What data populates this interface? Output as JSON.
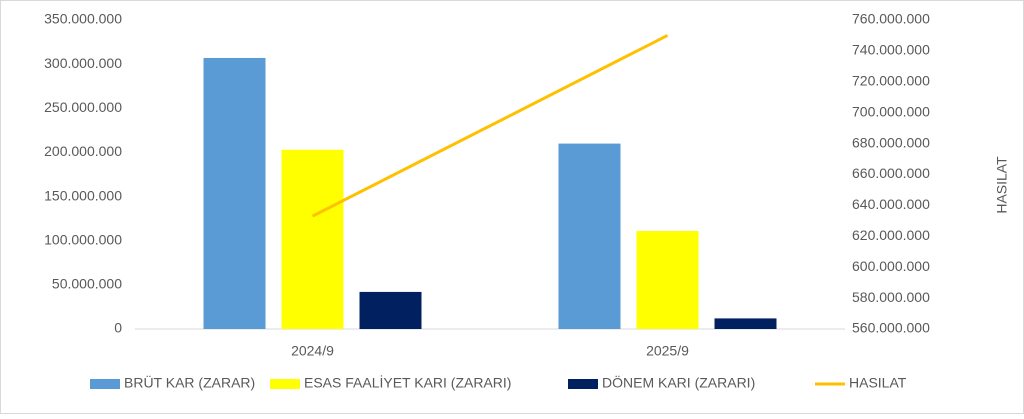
{
  "chart_data": {
    "type": "bar",
    "categories": [
      "2024/9",
      "2025/9"
    ],
    "series": [
      {
        "name": "BRÜT KAR (ZARAR)",
        "color": "#5b9bd5",
        "values": [
          307000000,
          210000000
        ]
      },
      {
        "name": "ESAS FAALİYET KARI (ZARARI)",
        "color": "#ffff00",
        "values": [
          203000000,
          111000000
        ]
      },
      {
        "name": "DÖNEM KARI (ZARARI)",
        "color": "#002060",
        "values": [
          42000000,
          12000000
        ]
      },
      {
        "name": "HASILAT",
        "color": "#ffc000",
        "type": "line",
        "axis": "y2",
        "values": [
          633000000,
          750000000
        ]
      }
    ],
    "ylim": [
      0,
      350000000
    ],
    "yticks": [
      0,
      {
        "value": 50000000,
        "label": "50.000.000"
      },
      {
        "value": 100000000,
        "label": "100.000.000"
      },
      {
        "value": 150000000,
        "label": "150.000.000"
      },
      {
        "value": 200000000,
        "label": "200.000.000"
      },
      {
        "value": 250000000,
        "label": "250.000.000"
      },
      {
        "value": 300000000,
        "label": "300.000.000"
      },
      {
        "value": 350000000,
        "label": "350.000.000"
      }
    ],
    "y2lim": [
      560000000,
      760000000
    ],
    "y2ticks": [
      {
        "value": 560000000,
        "label": "560.000.000"
      },
      {
        "value": 580000000,
        "label": "580.000.000"
      },
      {
        "value": 600000000,
        "label": "600.000.000"
      },
      {
        "value": 620000000,
        "label": "620.000.000"
      },
      {
        "value": 640000000,
        "label": "640.000.000"
      },
      {
        "value": 660000000,
        "label": "660.000.000"
      },
      {
        "value": 680000000,
        "label": "680.000.000"
      },
      {
        "value": 700000000,
        "label": "700.000.000"
      },
      {
        "value": 720000000,
        "label": "720.000.000"
      },
      {
        "value": 740000000,
        "label": "740.000.000"
      },
      {
        "value": 760000000,
        "label": "760.000.000"
      }
    ],
    "y2label": "HASILAT",
    "grid": false,
    "legend": "bottom"
  }
}
